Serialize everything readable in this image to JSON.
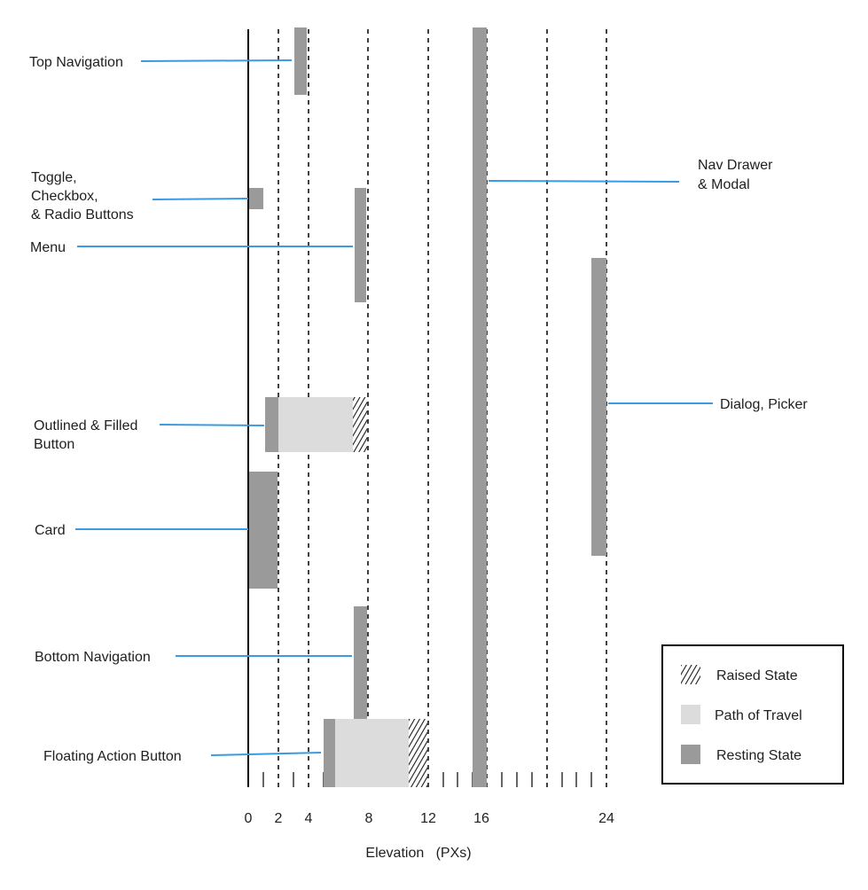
{
  "diagram": {
    "axis_title": "Elevation   (PXs)",
    "tick_labels": [
      "0",
      "2",
      "4",
      "8",
      "12",
      "16",
      "24"
    ],
    "colors": {
      "resting": "#9a9a9a",
      "path": "#dcdcdc",
      "line": "#3b9ae1",
      "axis": "#000000"
    }
  },
  "components": [
    {
      "key": "top-navigation",
      "label": [
        "Top Navigation"
      ]
    },
    {
      "key": "toggle-checkbox-radio",
      "label": [
        "Toggle,",
        "Checkbox,",
        "& Radio Buttons"
      ]
    },
    {
      "key": "menu",
      "label": [
        "Menu"
      ]
    },
    {
      "key": "outlined-filled-button",
      "label": [
        "Outlined & Filled",
        "Button"
      ]
    },
    {
      "key": "card",
      "label": [
        "Card"
      ]
    },
    {
      "key": "bottom-navigation",
      "label": [
        "Bottom Navigation"
      ]
    },
    {
      "key": "floating-action-button",
      "label": [
        "Floating Action Button"
      ]
    },
    {
      "key": "nav-drawer-modal",
      "label": [
        "Nav Drawer",
        "& Modal"
      ]
    },
    {
      "key": "dialog-picker",
      "label": [
        "Dialog, Picker"
      ]
    }
  ],
  "legend": {
    "items": [
      {
        "key": "raised",
        "label": "Raised State",
        "icon": "hatched-swatch"
      },
      {
        "key": "path",
        "label": "Path of Travel",
        "icon": "light-swatch"
      },
      {
        "key": "resting",
        "label": "Resting State",
        "icon": "dark-swatch"
      }
    ]
  }
}
